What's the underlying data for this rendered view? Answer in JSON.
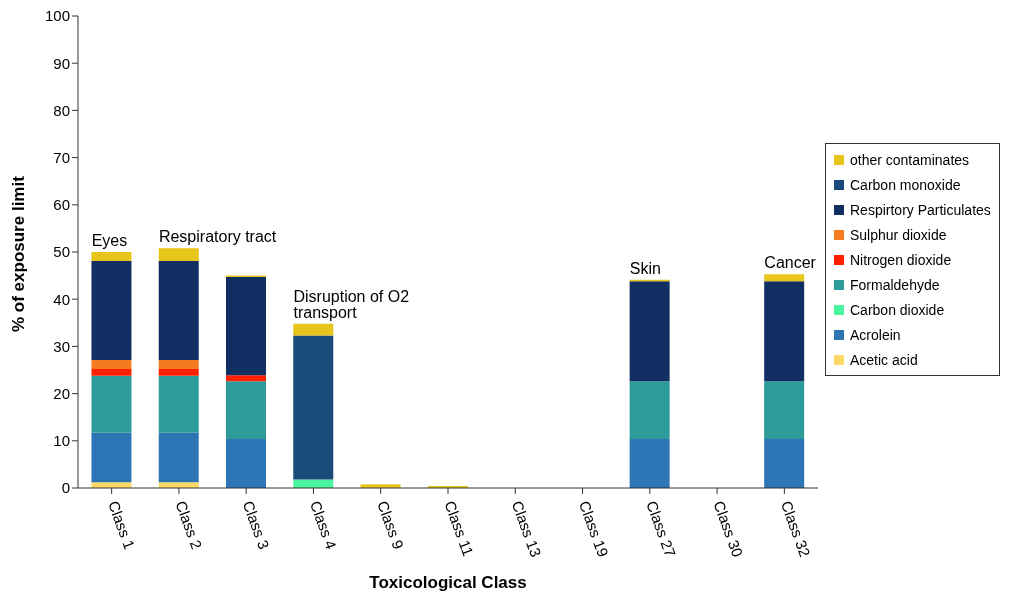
{
  "chart_data": {
    "type": "bar",
    "stacked": true,
    "xlabel": "Toxicological Class",
    "ylabel": "% of exposure limit",
    "categories": [
      "Class 1",
      "Class 2",
      "Class 3",
      "Class 4",
      "Class 9",
      "Class 11",
      "Class 13",
      "Class 19",
      "Class 27",
      "Class 30",
      "Class 32"
    ],
    "series": [
      {
        "name": "Acetic acid",
        "color": "#ffd966",
        "values": [
          1.2,
          1.2,
          0,
          0,
          0,
          0,
          0,
          0,
          0,
          0,
          0
        ]
      },
      {
        "name": "Acrolein",
        "color": "#2e75b6",
        "values": [
          10.5,
          10.5,
          10.4,
          0,
          0,
          0,
          0,
          0,
          10.4,
          0,
          10.4
        ]
      },
      {
        "name": "Carbon dioxide",
        "color": "#4cf5a0",
        "values": [
          0,
          0,
          0,
          1.8,
          0,
          0,
          0,
          0,
          0,
          0,
          0
        ]
      },
      {
        "name": "Formaldehyde",
        "color": "#2e9b9b",
        "values": [
          12.1,
          12.1,
          12.2,
          0,
          0,
          0,
          0,
          0,
          12.2,
          0,
          12.2
        ]
      },
      {
        "name": "Nitrogen dioxide",
        "color": "#ff2000",
        "values": [
          1.4,
          1.4,
          1.3,
          0,
          0,
          0,
          0,
          0,
          0,
          0,
          0
        ]
      },
      {
        "name": "Sulphur dioxide",
        "color": "#f47b20",
        "values": [
          1.9,
          1.9,
          0,
          0,
          0,
          0,
          0,
          0,
          0,
          0,
          0
        ]
      },
      {
        "name": "Respirtory Particulates",
        "color": "#112f63",
        "values": [
          21,
          21,
          20.8,
          0,
          0,
          0,
          0,
          0,
          21.2,
          0,
          21.2
        ]
      },
      {
        "name": "Carbon monoxide",
        "color": "#1a4b7a",
        "values": [
          0,
          0,
          0,
          30.5,
          0,
          0,
          0,
          0,
          0,
          0,
          0
        ]
      },
      {
        "name": "other contaminates",
        "color": "#e8c51a",
        "values": [
          1.9,
          2.7,
          0.3,
          2.5,
          0.8,
          0.4,
          0,
          0,
          0.3,
          0,
          1.5
        ]
      }
    ],
    "ylim": [
      0,
      100
    ],
    "yticks": [
      0,
      10,
      20,
      30,
      40,
      50,
      60,
      70,
      80,
      90,
      100
    ],
    "grid": false,
    "legend": "right",
    "annotations": [
      {
        "text": "Eyes",
        "x": "Class 1",
        "y": 50
      },
      {
        "text": "Respiratory tract",
        "x": "Class 2",
        "y": 50.8
      },
      {
        "text": "Disruption of O2 transport",
        "x": "Class 4",
        "y": 34.8
      },
      {
        "text": "Skin",
        "x": "Class 27",
        "y": 44.1
      },
      {
        "text": "Cancer",
        "x": "Class 32",
        "y": 45.3
      }
    ]
  }
}
